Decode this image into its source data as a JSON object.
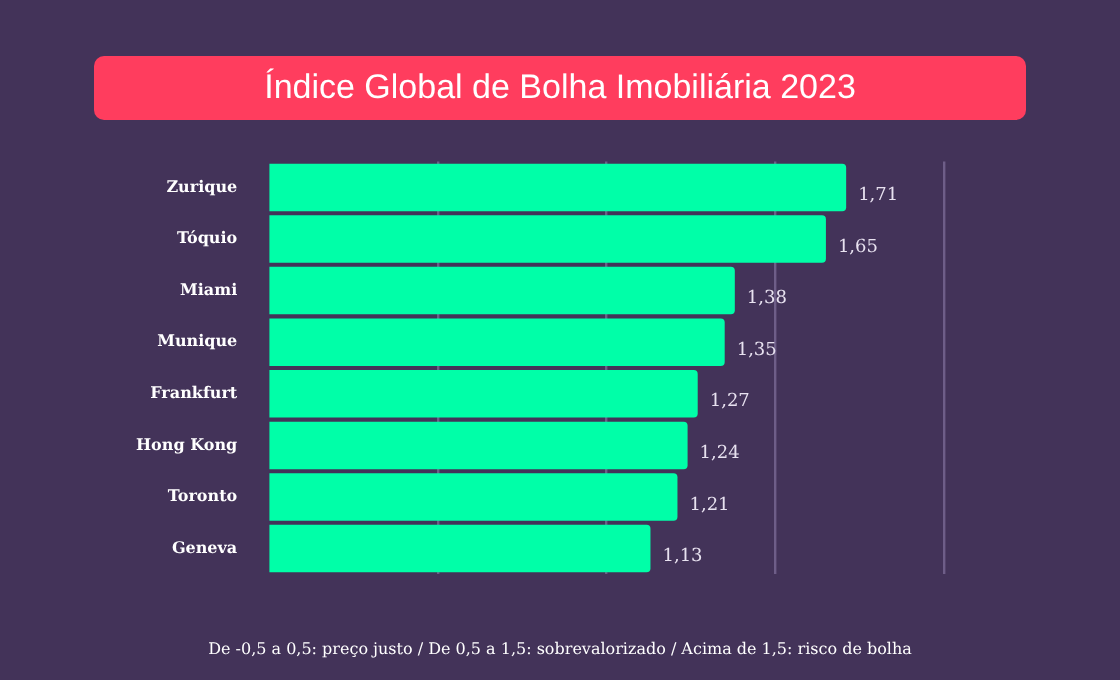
{
  "chart_data": {
    "type": "bar",
    "orientation": "horizontal",
    "title": "Índice Global de Bolha Imobiliária 2023",
    "categories": [
      "Zurique",
      "Tóquio",
      "Miami",
      "Munique",
      "Frankfurt",
      "Hong Kong",
      "Toronto",
      "Geneva"
    ],
    "values": [
      1.71,
      1.65,
      1.38,
      1.35,
      1.27,
      1.24,
      1.21,
      1.13
    ],
    "value_labels": [
      "1,71",
      "1,65",
      "1,38",
      "1,35",
      "1,27",
      "1,24",
      "1,21",
      "1,13"
    ],
    "color": "#00ffa8",
    "xlim": [
      0,
      2
    ],
    "xticks": [
      {
        "value": 0.5,
        "label": null
      },
      {
        "value": 1,
        "label": null
      },
      {
        "value": 1.5,
        "label": null
      },
      {
        "value": 2,
        "label": null
      }
    ],
    "grid": "x",
    "tick_labels": "y",
    "legend": false,
    "annotations": [
      "De -0,5 a 0,5: preço justo / De 0,5 a 1,5: sobrevalorizado / Acima de 1,5: risco de bolha"
    ]
  }
}
